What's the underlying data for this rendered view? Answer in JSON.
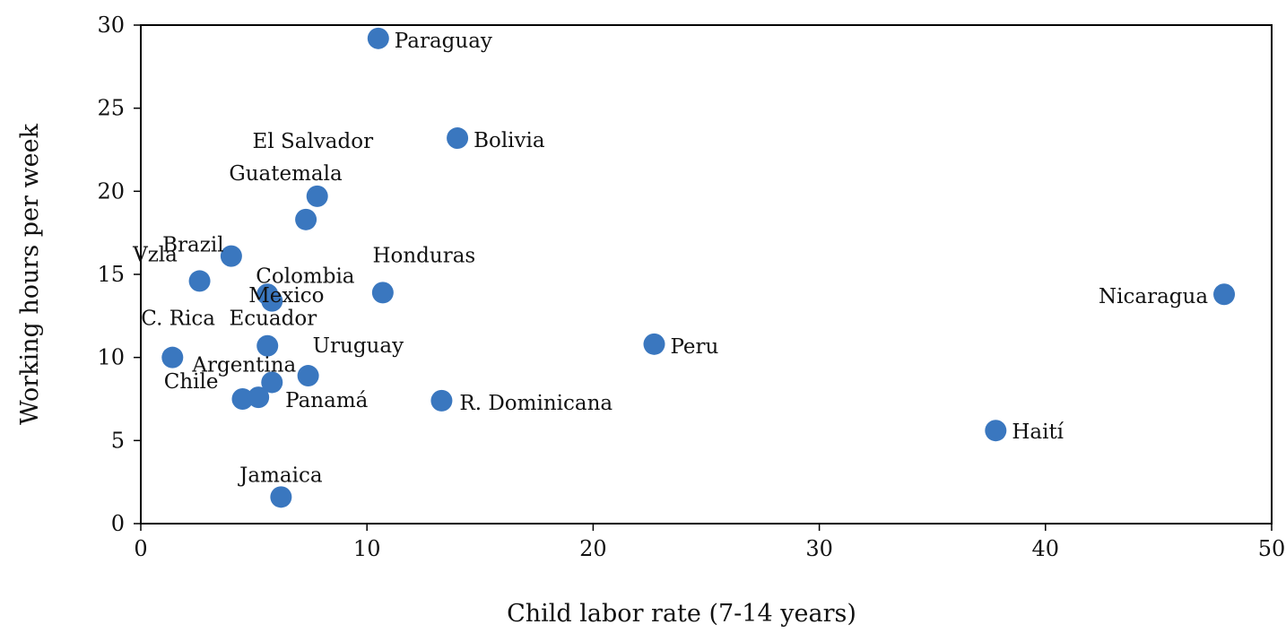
{
  "chart_data": {
    "type": "scatter",
    "title": "",
    "xlabel": "Child labor rate (7-14 years)",
    "ylabel": "Working hours per week",
    "xlim": [
      0,
      50
    ],
    "ylim": [
      0,
      30
    ],
    "xticks": [
      0,
      10,
      20,
      30,
      40,
      50
    ],
    "yticks": [
      0,
      5,
      10,
      15,
      20,
      25,
      30
    ],
    "grid": false,
    "marker_color": "#3a77bf",
    "points": [
      {
        "label": "Paraguay",
        "x": 10.5,
        "y": 29.2
      },
      {
        "label": "Bolivia",
        "x": 14.0,
        "y": 23.2
      },
      {
        "label": "El Salvador",
        "x": 7.3,
        "y": 18.3
      },
      {
        "label": "Guatemala",
        "x": 7.8,
        "y": 19.7
      },
      {
        "label": "Vzla",
        "x": 4.0,
        "y": 16.1
      },
      {
        "label": "Brazil",
        "x": 2.6,
        "y": 14.6
      },
      {
        "label": "Mexico",
        "x": 5.6,
        "y": 13.8
      },
      {
        "label": "Colombia",
        "x": 5.8,
        "y": 13.4
      },
      {
        "label": "Honduras",
        "x": 10.7,
        "y": 13.9
      },
      {
        "label": "Nicaragua",
        "x": 47.9,
        "y": 13.8
      },
      {
        "label": "C. Rica",
        "x": 1.4,
        "y": 10.0
      },
      {
        "label": "Ecuador",
        "x": 5.6,
        "y": 10.7
      },
      {
        "label": "Uruguay",
        "x": 7.4,
        "y": 8.9
      },
      {
        "label": "Peru",
        "x": 22.7,
        "y": 10.8
      },
      {
        "label": "Argentina",
        "x": 5.8,
        "y": 8.5
      },
      {
        "label": "Chile",
        "x": 4.5,
        "y": 7.5
      },
      {
        "label": "Panamá",
        "x": 5.2,
        "y": 7.6
      },
      {
        "label": "R. Dominicana",
        "x": 13.3,
        "y": 7.4
      },
      {
        "label": "Haití",
        "x": 37.8,
        "y": 5.6
      },
      {
        "label": "Jamaica",
        "x": 6.2,
        "y": 1.6
      }
    ]
  }
}
